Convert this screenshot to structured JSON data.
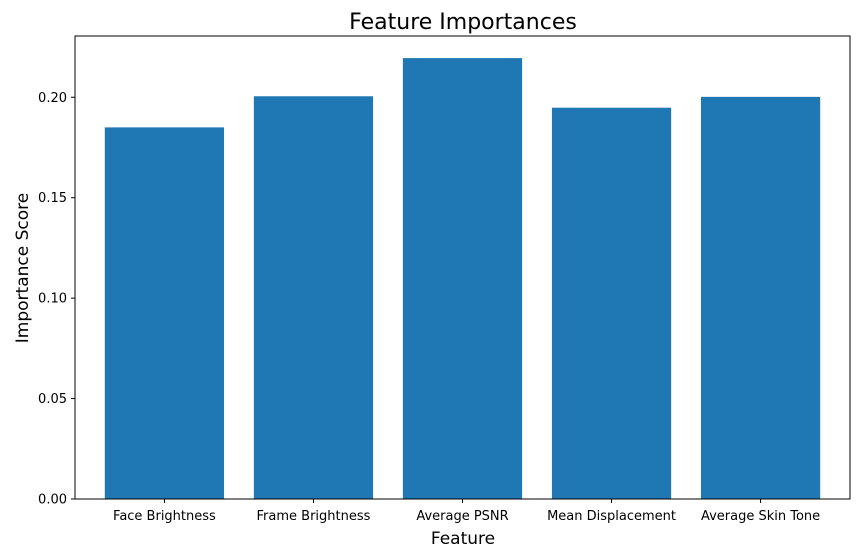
{
  "chart_data": {
    "type": "bar",
    "title": "Feature Importances",
    "xlabel": "Feature",
    "ylabel": "Importance Score",
    "categories": [
      "Face Brightness",
      "Frame Brightness",
      "Average PSNR",
      "Mean Displacement",
      "Average Skin Tone"
    ],
    "values": [
      0.185,
      0.2005,
      0.2195,
      0.1948,
      0.2002
    ],
    "ylim": [
      0,
      0.2305
    ],
    "yticks": [
      0.0,
      0.05,
      0.1,
      0.15,
      0.2
    ],
    "ytick_labels": [
      "0.00",
      "0.05",
      "0.10",
      "0.15",
      "0.20"
    ],
    "grid": false,
    "bar_color": "#1f77b4"
  }
}
